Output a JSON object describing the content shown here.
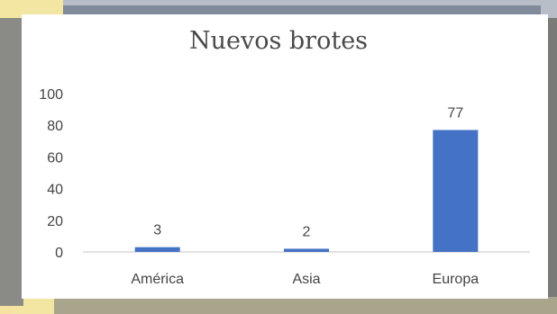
{
  "chart_data": {
    "type": "bar",
    "title": "Nuevos brotes",
    "categories": [
      "América",
      "Asia",
      "Europa"
    ],
    "values": [
      3,
      2,
      77
    ],
    "data_labels": [
      "3",
      "2",
      "77"
    ],
    "y_ticks": [
      "0",
      "20",
      "40",
      "60",
      "80",
      "100"
    ],
    "ylim": [
      0,
      100
    ],
    "xlabel": "",
    "ylabel": "",
    "grid": false,
    "bar_color": "#4472c4"
  }
}
